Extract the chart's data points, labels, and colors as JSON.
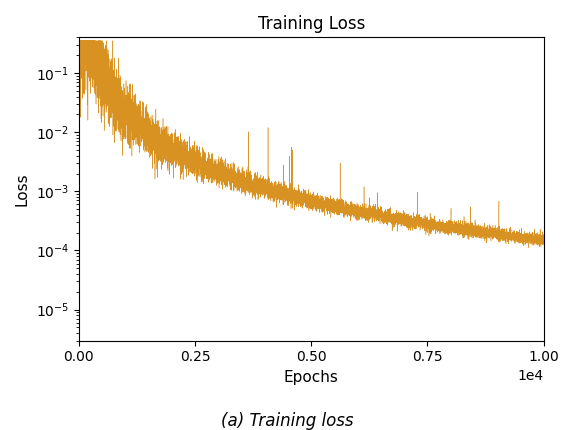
{
  "title": "Training Loss",
  "xlabel": "Epochs",
  "ylabel": "Loss",
  "caption": "(a) Training loss",
  "line_color": "#D4860A",
  "n_epochs": 10000,
  "ylim_low": 3e-06,
  "ylim_high": 0.4,
  "xlim_low": 0,
  "xlim_high": 10000,
  "title_fontsize": 12,
  "label_fontsize": 11,
  "caption_fontsize": 12,
  "tick_fontsize": 10
}
